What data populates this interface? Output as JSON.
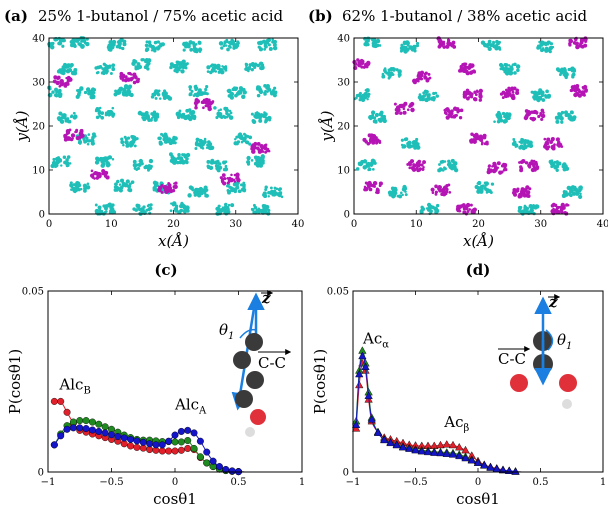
{
  "colors": {
    "cyan": "#1fbfb8",
    "magenta": "#b515b5",
    "red": "#e0202a",
    "green": "#1f8a1f",
    "blue": "#1414c8",
    "arrow": "#1a7fe0",
    "atom_dark": "#3a3a3a",
    "atom_red": "#e0303a",
    "atom_white": "#dddddd"
  },
  "icons": [
    "butanol-molecule-icon",
    "acetic-acid-molecule-icon"
  ],
  "chart_data": [
    {
      "type": "scatter",
      "label": "(a)",
      "title": "25% 1-butanol / 75% acetic acid",
      "xlabel": "x(Å)",
      "ylabel": "y(Å)",
      "xlim": [
        0,
        40
      ],
      "ylim": [
        0,
        40
      ],
      "xticks": [
        "0",
        "10",
        "20",
        "30",
        "40"
      ],
      "yticks": [
        "0",
        "10",
        "20",
        "30",
        "40"
      ],
      "series": [
        {
          "color": "#1fbfb8",
          "points": [
            [
              1,
              39
            ],
            [
              5,
              39
            ],
            [
              11,
              38.5
            ],
            [
              17,
              38
            ],
            [
              23,
              38
            ],
            [
              29,
              38.5
            ],
            [
              35,
              38.5
            ],
            [
              3,
              33
            ],
            [
              9,
              33
            ],
            [
              15,
              34
            ],
            [
              21,
              33.5
            ],
            [
              27,
              33
            ],
            [
              33,
              33.5
            ],
            [
              0.5,
              28
            ],
            [
              6,
              27.5
            ],
            [
              12,
              28
            ],
            [
              18,
              27
            ],
            [
              24,
              28
            ],
            [
              30,
              27.5
            ],
            [
              35,
              28
            ],
            [
              3,
              22
            ],
            [
              9,
              23
            ],
            [
              16,
              22
            ],
            [
              22,
              22.5
            ],
            [
              28,
              23
            ],
            [
              34,
              22
            ],
            [
              6,
              17
            ],
            [
              13,
              16.5
            ],
            [
              19,
              17
            ],
            [
              25,
              16
            ],
            [
              31,
              17
            ],
            [
              2,
              12
            ],
            [
              9,
              12
            ],
            [
              15,
              11
            ],
            [
              21,
              12.5
            ],
            [
              27,
              11
            ],
            [
              33,
              12
            ],
            [
              5,
              6
            ],
            [
              12,
              6.5
            ],
            [
              18,
              6
            ],
            [
              24,
              5
            ],
            [
              30,
              6
            ],
            [
              36,
              5
            ],
            [
              9,
              1
            ],
            [
              15,
              1
            ],
            [
              21,
              1.5
            ],
            [
              28,
              1
            ],
            [
              34,
              1
            ]
          ]
        },
        {
          "color": "#b515b5",
          "points": [
            [
              2,
              30
            ],
            [
              13,
              31
            ],
            [
              25,
              25
            ],
            [
              8,
              9
            ],
            [
              29,
              8
            ],
            [
              19,
              6
            ],
            [
              4,
              18
            ],
            [
              34,
              15
            ]
          ]
        }
      ]
    },
    {
      "type": "scatter",
      "label": "(b)",
      "title": "62% 1-butanol / 38% acetic acid",
      "xlabel": "x(Å)",
      "ylabel": "y(Å)",
      "xlim": [
        0,
        40
      ],
      "ylim": [
        0,
        40
      ],
      "xticks": [
        "0",
        "10",
        "20",
        "30",
        "40"
      ],
      "yticks": [
        "0",
        "10",
        "20",
        "30",
        "40"
      ],
      "series": [
        {
          "color": "#1fbfb8",
          "points": [
            [
              3,
              39
            ],
            [
              9,
              38
            ],
            [
              22,
              38.5
            ],
            [
              31,
              38
            ],
            [
              6,
              32
            ],
            [
              25,
              33
            ],
            [
              34,
              32
            ],
            [
              1,
              27
            ],
            [
              12,
              27
            ],
            [
              30,
              27
            ],
            [
              4,
              22
            ],
            [
              24,
              22
            ],
            [
              34,
              22
            ],
            [
              9,
              16
            ],
            [
              27,
              16
            ],
            [
              2,
              11
            ],
            [
              15,
              11
            ],
            [
              33,
              11
            ],
            [
              7,
              5
            ],
            [
              21,
              6
            ],
            [
              35,
              5
            ],
            [
              12,
              1
            ],
            [
              28,
              1
            ]
          ]
        },
        {
          "color": "#b515b5",
          "points": [
            [
              15,
              39
            ],
            [
              36,
              39
            ],
            [
              1,
              34
            ],
            [
              18,
              33
            ],
            [
              11,
              31
            ],
            [
              19,
              27
            ],
            [
              25,
              27.5
            ],
            [
              8,
              24
            ],
            [
              16,
              23
            ],
            [
              29,
              22.5
            ],
            [
              3,
              17
            ],
            [
              20,
              17
            ],
            [
              32,
              16
            ],
            [
              10,
              11
            ],
            [
              23,
              10.5
            ],
            [
              28,
              11
            ],
            [
              3,
              6
            ],
            [
              14,
              5.5
            ],
            [
              27,
              5
            ],
            [
              18,
              1
            ],
            [
              33,
              1
            ],
            [
              36,
              28
            ]
          ]
        }
      ]
    },
    {
      "type": "line",
      "label": "(c)",
      "xlabel": "cosθ1",
      "ylabel": "P(cosθ1)",
      "xlim": [
        -1,
        1
      ],
      "ylim": [
        0,
        0.05
      ],
      "xticks": [
        "−1",
        "−0.5",
        "0",
        "0.5",
        "1"
      ],
      "yticks": [
        "0",
        "0.05"
      ],
      "annotations": [
        {
          "text": "Alc",
          "sub": "B",
          "x": -0.91,
          "y": 0.0228
        },
        {
          "text": "Alc",
          "sub": "A",
          "x": 0.0,
          "y": 0.0172
        }
      ],
      "inset_labels": {
        "theta": "θ",
        "theta_sub": "1",
        "z": "z",
        "cc": "C-C"
      },
      "series": [
        {
          "color": "#e0202a",
          "marker": "circle",
          "x": [
            -0.95,
            -0.9,
            -0.85,
            -0.8,
            -0.75,
            -0.7,
            -0.65,
            -0.6,
            -0.55,
            -0.5,
            -0.45,
            -0.4,
            -0.35,
            -0.3,
            -0.25,
            -0.2,
            -0.15,
            -0.1,
            -0.05,
            0,
            0.05,
            0.1,
            0.15,
            0.2,
            0.25,
            0.3,
            0.35,
            0.4,
            0.45,
            0.5,
            0.55,
            0.6,
            0.65,
            0.7,
            0.75,
            0.8,
            0.85,
            0.9,
            0.95
          ],
          "values": [
            0.0195,
            0.0195,
            0.0165,
            0.0135,
            0.0115,
            0.011,
            0.0105,
            0.01,
            0.0095,
            0.009,
            0.0085,
            0.0078,
            0.0072,
            0.0068,
            0.0066,
            0.0062,
            0.006,
            0.0058,
            0.0058,
            0.0058,
            0.006,
            0.0065,
            0.0062,
            0.004,
            0.0025,
            0.0015,
            0.0008,
            0.0004,
            0.0002,
            0.0001,
            0,
            0,
            0,
            0,
            0,
            0,
            0,
            0,
            0
          ]
        },
        {
          "color": "#1f8a1f",
          "marker": "circle",
          "x": [
            -0.95,
            -0.9,
            -0.85,
            -0.8,
            -0.75,
            -0.7,
            -0.65,
            -0.6,
            -0.55,
            -0.5,
            -0.45,
            -0.4,
            -0.35,
            -0.3,
            -0.25,
            -0.2,
            -0.15,
            -0.1,
            -0.05,
            0,
            0.05,
            0.1,
            0.15,
            0.2,
            0.25,
            0.3,
            0.35,
            0.4,
            0.45,
            0.5,
            0.55,
            0.6,
            0.65,
            0.7,
            0.75,
            0.8,
            0.85,
            0.9,
            0.95
          ],
          "values": [
            0.0075,
            0.0105,
            0.0128,
            0.0138,
            0.0142,
            0.0142,
            0.0138,
            0.0132,
            0.0125,
            0.0118,
            0.011,
            0.0102,
            0.0095,
            0.009,
            0.0088,
            0.0088,
            0.0086,
            0.0084,
            0.0084,
            0.0083,
            0.0083,
            0.0087,
            0.0065,
            0.0042,
            0.0025,
            0.0015,
            0.0008,
            0.0004,
            0.0002,
            0.0001,
            0,
            0,
            0,
            0,
            0,
            0,
            0,
            0,
            0
          ]
        },
        {
          "color": "#1414c8",
          "marker": "circle",
          "x": [
            -0.95,
            -0.9,
            -0.85,
            -0.8,
            -0.75,
            -0.7,
            -0.65,
            -0.6,
            -0.55,
            -0.5,
            -0.45,
            -0.4,
            -0.35,
            -0.3,
            -0.25,
            -0.2,
            -0.15,
            -0.1,
            -0.05,
            0,
            0.05,
            0.1,
            0.15,
            0.2,
            0.25,
            0.3,
            0.35,
            0.4,
            0.45,
            0.5,
            0.55,
            0.6,
            0.65,
            0.7,
            0.75,
            0.8,
            0.85,
            0.9,
            0.95
          ],
          "values": [
            0.0075,
            0.01,
            0.0118,
            0.0122,
            0.0122,
            0.012,
            0.0116,
            0.0112,
            0.0108,
            0.0103,
            0.0098,
            0.0094,
            0.009,
            0.0086,
            0.0082,
            0.0078,
            0.0075,
            0.0075,
            0.0085,
            0.0102,
            0.0112,
            0.0115,
            0.0108,
            0.0085,
            0.0055,
            0.003,
            0.0015,
            0.0007,
            0.0003,
            0.0001,
            0,
            0,
            0,
            0,
            0,
            0,
            0,
            0,
            0
          ]
        }
      ]
    },
    {
      "type": "line",
      "label": "(d)",
      "xlabel": "cosθ1",
      "ylabel": "P(cosθ1)",
      "xlim": [
        -1,
        1
      ],
      "ylim": [
        0,
        0.05
      ],
      "xticks": [
        "−1",
        "−0.5",
        "0",
        "0.5",
        "1"
      ],
      "yticks": [
        "0",
        "0.05"
      ],
      "annotations": [
        {
          "text": "Ac",
          "sub": "α",
          "x": -0.92,
          "y": 0.0355
        },
        {
          "text": "Ac",
          "sub": "β",
          "x": -0.27,
          "y": 0.0125
        }
      ],
      "inset_labels": {
        "theta": "θ",
        "theta_sub": "1",
        "z": "z",
        "cc": "C-C"
      },
      "series": [
        {
          "color": "#e0202a",
          "marker": "triangle",
          "x": [
            -0.975,
            -0.95,
            -0.925,
            -0.9,
            -0.875,
            -0.85,
            -0.8,
            -0.75,
            -0.7,
            -0.65,
            -0.6,
            -0.55,
            -0.5,
            -0.45,
            -0.4,
            -0.35,
            -0.3,
            -0.25,
            -0.2,
            -0.15,
            -0.1,
            -0.05,
            0,
            0.05,
            0.1,
            0.15,
            0.2,
            0.25,
            0.3,
            0.35,
            0.4,
            0.45,
            0.5,
            0.55,
            0.6,
            0.65,
            0.7,
            0.75,
            0.8,
            0.85,
            0.9,
            0.95
          ],
          "values": [
            0.012,
            0.024,
            0.03,
            0.028,
            0.02,
            0.014,
            0.011,
            0.0095,
            0.009,
            0.0085,
            0.008,
            0.0075,
            0.0073,
            0.0072,
            0.0072,
            0.0072,
            0.0074,
            0.0076,
            0.0074,
            0.0068,
            0.006,
            0.0045,
            0.003,
            0.002,
            0.0014,
            0.001,
            0.0006,
            0.0003,
            0.0001,
            0,
            0,
            0,
            0,
            0,
            0,
            0,
            0,
            0,
            0,
            0,
            0,
            0
          ]
        },
        {
          "color": "#1f8a1f",
          "marker": "triangle",
          "x": [
            -0.975,
            -0.95,
            -0.925,
            -0.9,
            -0.875,
            -0.85,
            -0.8,
            -0.75,
            -0.7,
            -0.65,
            -0.6,
            -0.55,
            -0.5,
            -0.45,
            -0.4,
            -0.35,
            -0.3,
            -0.25,
            -0.2,
            -0.15,
            -0.1,
            -0.05,
            0,
            0.05,
            0.1,
            0.15,
            0.2,
            0.25,
            0.3,
            0.35,
            0.4,
            0.45,
            0.5,
            0.55,
            0.6,
            0.65,
            0.7,
            0.75,
            0.8,
            0.85,
            0.9,
            0.95
          ],
          "values": [
            0.014,
            0.028,
            0.0335,
            0.03,
            0.022,
            0.015,
            0.011,
            0.009,
            0.0082,
            0.0076,
            0.007,
            0.0066,
            0.0062,
            0.006,
            0.0058,
            0.0056,
            0.0055,
            0.0054,
            0.0052,
            0.0048,
            0.0042,
            0.0034,
            0.0026,
            0.0018,
            0.0012,
            0.0008,
            0.0005,
            0.0003,
            0.0001,
            0,
            0,
            0,
            0,
            0,
            0,
            0,
            0,
            0,
            0,
            0,
            0,
            0
          ]
        },
        {
          "color": "#1414c8",
          "marker": "triangle",
          "x": [
            -0.975,
            -0.95,
            -0.925,
            -0.9,
            -0.875,
            -0.85,
            -0.8,
            -0.75,
            -0.7,
            -0.65,
            -0.6,
            -0.55,
            -0.5,
            -0.45,
            -0.4,
            -0.35,
            -0.3,
            -0.25,
            -0.2,
            -0.15,
            -0.1,
            -0.05,
            0,
            0.05,
            0.1,
            0.15,
            0.2,
            0.25,
            0.3,
            0.35,
            0.4,
            0.45,
            0.5,
            0.55,
            0.6,
            0.65,
            0.7,
            0.75,
            0.8,
            0.85,
            0.9,
            0.95
          ],
          "values": [
            0.013,
            0.027,
            0.032,
            0.029,
            0.021,
            0.0145,
            0.0108,
            0.0088,
            0.008,
            0.0074,
            0.0068,
            0.0064,
            0.006,
            0.0057,
            0.0055,
            0.0053,
            0.0052,
            0.005,
            0.0048,
            0.0044,
            0.0038,
            0.0032,
            0.0025,
            0.0018,
            0.0012,
            0.0008,
            0.0005,
            0.0003,
            0.0001,
            0,
            0,
            0,
            0,
            0,
            0,
            0,
            0,
            0,
            0,
            0,
            0,
            0
          ]
        }
      ]
    }
  ]
}
